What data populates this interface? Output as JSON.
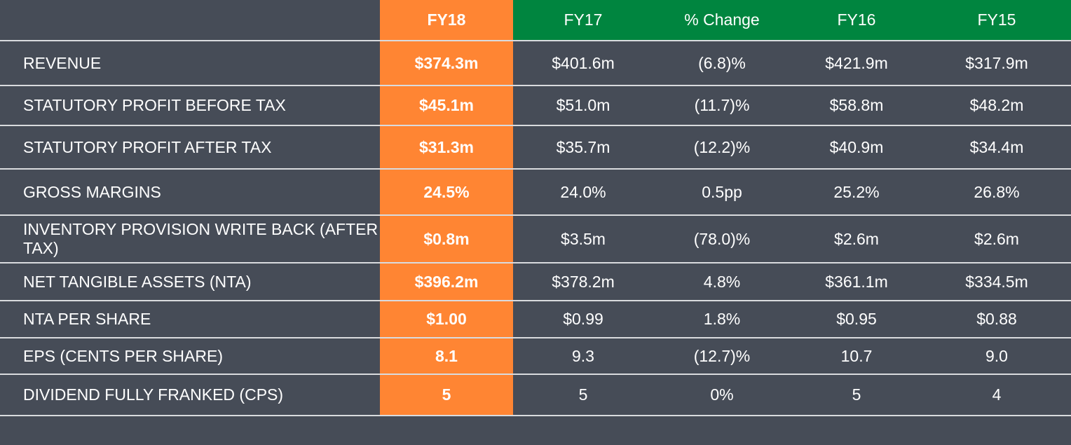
{
  "colors": {
    "background": "#464c57",
    "highlight_column": "#ff8533",
    "header_green": "#00853f",
    "row_divider": "#d9dbde",
    "text": "#ffffff"
  },
  "table": {
    "headers": [
      "",
      "FY18",
      "FY17",
      "% Change",
      "FY16",
      "FY15"
    ],
    "rows": [
      {
        "label": "REVENUE",
        "fy18": "$374.3m",
        "fy17": "$401.6m",
        "change": "(6.8)%",
        "fy16": "$421.9m",
        "fy15": "$317.9m"
      },
      {
        "label": "STATUTORY PROFIT BEFORE TAX",
        "fy18": "$45.1m",
        "fy17": "$51.0m",
        "change": "(11.7)%",
        "fy16": "$58.8m",
        "fy15": "$48.2m"
      },
      {
        "label": "STATUTORY PROFIT AFTER TAX",
        "fy18": "$31.3m",
        "fy17": "$35.7m",
        "change": "(12.2)%",
        "fy16": "$40.9m",
        "fy15": "$34.4m"
      },
      {
        "label": "GROSS MARGINS",
        "fy18": "24.5%",
        "fy17": "24.0%",
        "change": "0.5pp",
        "fy16": "25.2%",
        "fy15": "26.8%"
      },
      {
        "label": "INVENTORY PROVISION WRITE BACK (AFTER TAX)",
        "fy18": "$0.8m",
        "fy17": "$3.5m",
        "change": "(78.0)%",
        "fy16": "$2.6m",
        "fy15": "$2.6m"
      },
      {
        "label": "NET TANGIBLE ASSETS (NTA)",
        "fy18": "$396.2m",
        "fy17": "$378.2m",
        "change": "4.8%",
        "fy16": "$361.1m",
        "fy15": "$334.5m"
      },
      {
        "label": "NTA PER SHARE",
        "fy18": "$1.00",
        "fy17": "$0.99",
        "change": "1.8%",
        "fy16": "$0.95",
        "fy15": "$0.88"
      },
      {
        "label": "EPS (CENTS PER SHARE)",
        "fy18": "8.1",
        "fy17": "9.3",
        "change": "(12.7)%",
        "fy16": "10.7",
        "fy15": "9.0"
      },
      {
        "label": "DIVIDEND FULLY FRANKED (CPS)",
        "fy18": "5",
        "fy17": "5",
        "change": "0%",
        "fy16": "5",
        "fy15": "4"
      }
    ]
  }
}
